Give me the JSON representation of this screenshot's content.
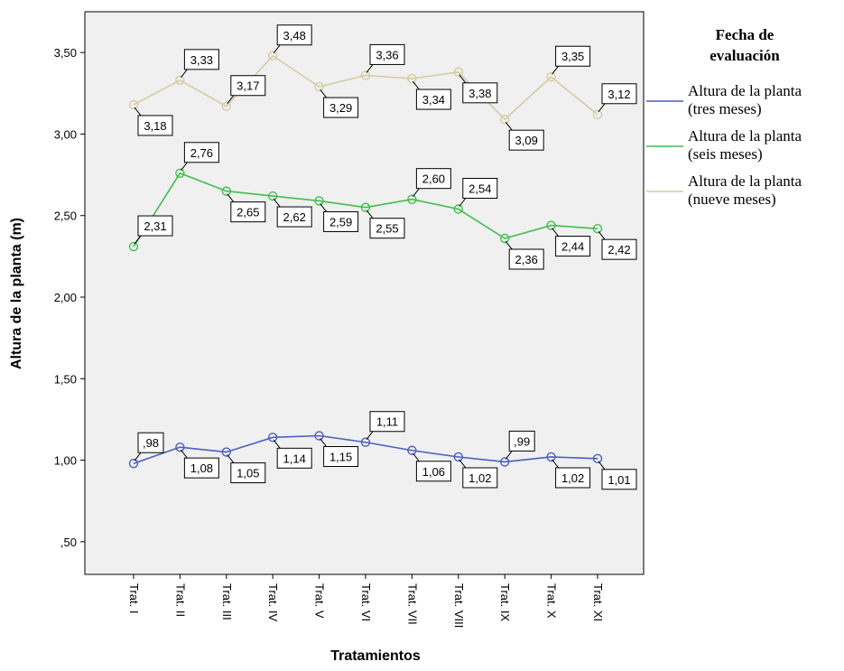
{
  "chart_data": {
    "type": "line",
    "xlabel": "Tratamientos",
    "ylabel": "Altura de la planta (m)",
    "categories": [
      "Trat. I",
      "Trat. II",
      "Trat. III",
      "Trat. IV",
      "Trat. V",
      "Trat. VI",
      "Trat. VII",
      "Trat. VIII",
      "Trat. IX",
      "Trat. X",
      "Trat. XI"
    ],
    "ylim": [
      0.3,
      3.75
    ],
    "yticks": [
      ",50",
      "1,00",
      "1,50",
      "2,00",
      "2,50",
      "3,00",
      "3,50"
    ],
    "ytick_values": [
      0.5,
      1.0,
      1.5,
      2.0,
      2.5,
      3.0,
      3.5
    ],
    "grid": false,
    "legend": {
      "title_line1": "Fecha de",
      "title_line2": "evaluación",
      "placement": "right"
    },
    "series": [
      {
        "name_line1": "Altura de la planta",
        "name_line2": "(tres meses)",
        "color": "#4a5fc1",
        "values": [
          0.98,
          1.08,
          1.05,
          1.14,
          1.15,
          1.11,
          1.06,
          1.02,
          0.99,
          1.02,
          1.01
        ],
        "labels": [
          ",98",
          "1,08",
          "1,05",
          "1,14",
          "1,15",
          "1,11",
          "1,06",
          "1,02",
          ",99",
          "1,02",
          "1,01"
        ]
      },
      {
        "name_line1": "Altura de la planta",
        "name_line2": "(seis meses)",
        "color": "#3fbf4a",
        "values": [
          2.31,
          2.76,
          2.65,
          2.62,
          2.59,
          2.55,
          2.6,
          2.54,
          2.36,
          2.44,
          2.42
        ],
        "labels": [
          "2,31",
          "2,76",
          "2,65",
          "2,62",
          "2,59",
          "2,55",
          "2,60",
          "2,54",
          "2,36",
          "2,44",
          "2,42"
        ]
      },
      {
        "name_line1": "Altura de la planta",
        "name_line2": "(nueve meses)",
        "color": "#d4cca4",
        "values": [
          3.18,
          3.33,
          3.17,
          3.48,
          3.29,
          3.36,
          3.34,
          3.38,
          3.09,
          3.35,
          3.12
        ],
        "labels": [
          "3,18",
          "3,33",
          "3,17",
          "3,48",
          "3,29",
          "3,36",
          "3,34",
          "3,38",
          "3,09",
          "3,35",
          "3,12"
        ]
      }
    ]
  }
}
